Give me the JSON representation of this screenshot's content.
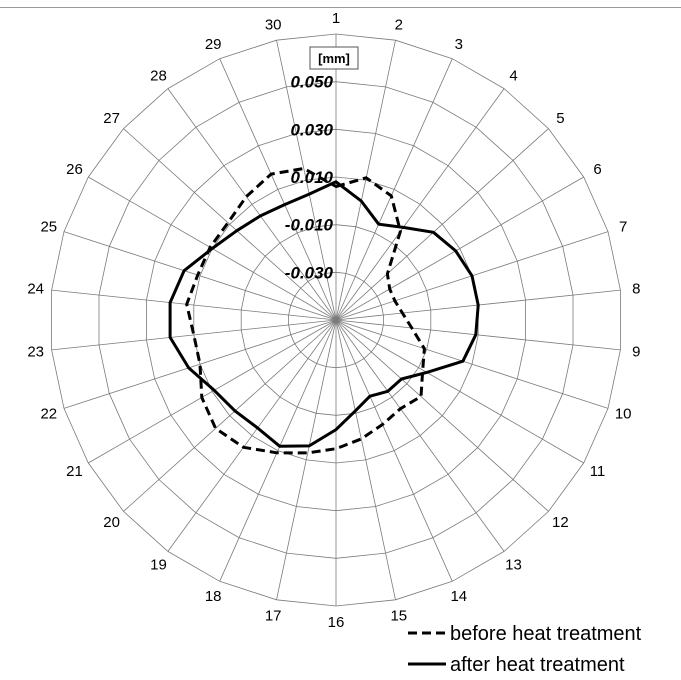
{
  "chart_data": {
    "type": "radar",
    "unit_label": "[mm]",
    "radial_ticks": [
      "-0.030",
      "-0.010",
      "0.010",
      "0.030",
      "0.050"
    ],
    "rlim": [
      -0.05,
      0.07
    ],
    "grid": true,
    "legend_position": "bottom-right",
    "categories": [
      "1",
      "2",
      "3",
      "4",
      "5",
      "6",
      "7",
      "8",
      "9",
      "10",
      "11",
      "12",
      "13",
      "14",
      "15",
      "16",
      "17",
      "18",
      "19",
      "20",
      "21",
      "22",
      "23",
      "24",
      "25",
      "26",
      "27",
      "28",
      "29",
      "30"
    ],
    "series": [
      {
        "name": "before heat treatment",
        "style": "dashed",
        "color": "#000000",
        "values": [
          0.006,
          0.011,
          0.007,
          -0.004,
          -0.021,
          -0.024,
          -0.024,
          -0.022,
          -0.018,
          -0.011,
          -0.008,
          -0.002,
          -0.004,
          -0.002,
          0.001,
          0.004,
          0.007,
          0.011,
          0.016,
          0.018,
          0.015,
          0.01,
          0.01,
          0.013,
          0.011,
          0.011,
          0.011,
          0.014,
          0.017,
          0.015
        ]
      },
      {
        "name": "after heat treatment",
        "style": "solid",
        "color": "#000000",
        "values": [
          0.008,
          0.001,
          -0.006,
          -0.002,
          0.005,
          0.008,
          0.01,
          0.01,
          0.009,
          0.006,
          -0.006,
          -0.013,
          -0.013,
          -0.015,
          -0.011,
          -0.004,
          0.004,
          0.008,
          0.006,
          0.007,
          0.009,
          0.015,
          0.02,
          0.02,
          0.017,
          0.01,
          0.006,
          0.004,
          0.003,
          0.004
        ]
      }
    ]
  }
}
